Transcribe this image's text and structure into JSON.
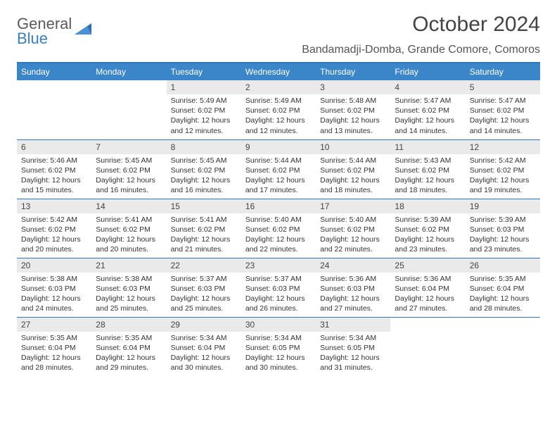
{
  "brand": {
    "word1": "General",
    "word2": "Blue"
  },
  "title": "October 2024",
  "location": "Bandamadji-Domba, Grande Comore, Comoros",
  "colors": {
    "header_bg": "#3a86c8",
    "border": "#2f77b8",
    "daynum_bg": "#eaeaea"
  },
  "day_names": [
    "Sunday",
    "Monday",
    "Tuesday",
    "Wednesday",
    "Thursday",
    "Friday",
    "Saturday"
  ],
  "first_weekday_index": 2,
  "days": [
    {
      "n": 1,
      "sr": "5:49 AM",
      "ss": "6:02 PM",
      "dl": "12 hours and 12 minutes."
    },
    {
      "n": 2,
      "sr": "5:49 AM",
      "ss": "6:02 PM",
      "dl": "12 hours and 12 minutes."
    },
    {
      "n": 3,
      "sr": "5:48 AM",
      "ss": "6:02 PM",
      "dl": "12 hours and 13 minutes."
    },
    {
      "n": 4,
      "sr": "5:47 AM",
      "ss": "6:02 PM",
      "dl": "12 hours and 14 minutes."
    },
    {
      "n": 5,
      "sr": "5:47 AM",
      "ss": "6:02 PM",
      "dl": "12 hours and 14 minutes."
    },
    {
      "n": 6,
      "sr": "5:46 AM",
      "ss": "6:02 PM",
      "dl": "12 hours and 15 minutes."
    },
    {
      "n": 7,
      "sr": "5:45 AM",
      "ss": "6:02 PM",
      "dl": "12 hours and 16 minutes."
    },
    {
      "n": 8,
      "sr": "5:45 AM",
      "ss": "6:02 PM",
      "dl": "12 hours and 16 minutes."
    },
    {
      "n": 9,
      "sr": "5:44 AM",
      "ss": "6:02 PM",
      "dl": "12 hours and 17 minutes."
    },
    {
      "n": 10,
      "sr": "5:44 AM",
      "ss": "6:02 PM",
      "dl": "12 hours and 18 minutes."
    },
    {
      "n": 11,
      "sr": "5:43 AM",
      "ss": "6:02 PM",
      "dl": "12 hours and 18 minutes."
    },
    {
      "n": 12,
      "sr": "5:42 AM",
      "ss": "6:02 PM",
      "dl": "12 hours and 19 minutes."
    },
    {
      "n": 13,
      "sr": "5:42 AM",
      "ss": "6:02 PM",
      "dl": "12 hours and 20 minutes."
    },
    {
      "n": 14,
      "sr": "5:41 AM",
      "ss": "6:02 PM",
      "dl": "12 hours and 20 minutes."
    },
    {
      "n": 15,
      "sr": "5:41 AM",
      "ss": "6:02 PM",
      "dl": "12 hours and 21 minutes."
    },
    {
      "n": 16,
      "sr": "5:40 AM",
      "ss": "6:02 PM",
      "dl": "12 hours and 22 minutes."
    },
    {
      "n": 17,
      "sr": "5:40 AM",
      "ss": "6:02 PM",
      "dl": "12 hours and 22 minutes."
    },
    {
      "n": 18,
      "sr": "5:39 AM",
      "ss": "6:02 PM",
      "dl": "12 hours and 23 minutes."
    },
    {
      "n": 19,
      "sr": "5:39 AM",
      "ss": "6:03 PM",
      "dl": "12 hours and 23 minutes."
    },
    {
      "n": 20,
      "sr": "5:38 AM",
      "ss": "6:03 PM",
      "dl": "12 hours and 24 minutes."
    },
    {
      "n": 21,
      "sr": "5:38 AM",
      "ss": "6:03 PM",
      "dl": "12 hours and 25 minutes."
    },
    {
      "n": 22,
      "sr": "5:37 AM",
      "ss": "6:03 PM",
      "dl": "12 hours and 25 minutes."
    },
    {
      "n": 23,
      "sr": "5:37 AM",
      "ss": "6:03 PM",
      "dl": "12 hours and 26 minutes."
    },
    {
      "n": 24,
      "sr": "5:36 AM",
      "ss": "6:03 PM",
      "dl": "12 hours and 27 minutes."
    },
    {
      "n": 25,
      "sr": "5:36 AM",
      "ss": "6:04 PM",
      "dl": "12 hours and 27 minutes."
    },
    {
      "n": 26,
      "sr": "5:35 AM",
      "ss": "6:04 PM",
      "dl": "12 hours and 28 minutes."
    },
    {
      "n": 27,
      "sr": "5:35 AM",
      "ss": "6:04 PM",
      "dl": "12 hours and 28 minutes."
    },
    {
      "n": 28,
      "sr": "5:35 AM",
      "ss": "6:04 PM",
      "dl": "12 hours and 29 minutes."
    },
    {
      "n": 29,
      "sr": "5:34 AM",
      "ss": "6:04 PM",
      "dl": "12 hours and 30 minutes."
    },
    {
      "n": 30,
      "sr": "5:34 AM",
      "ss": "6:05 PM",
      "dl": "12 hours and 30 minutes."
    },
    {
      "n": 31,
      "sr": "5:34 AM",
      "ss": "6:05 PM",
      "dl": "12 hours and 31 minutes."
    }
  ],
  "labels": {
    "sunrise": "Sunrise:",
    "sunset": "Sunset:",
    "daylight": "Daylight:"
  }
}
